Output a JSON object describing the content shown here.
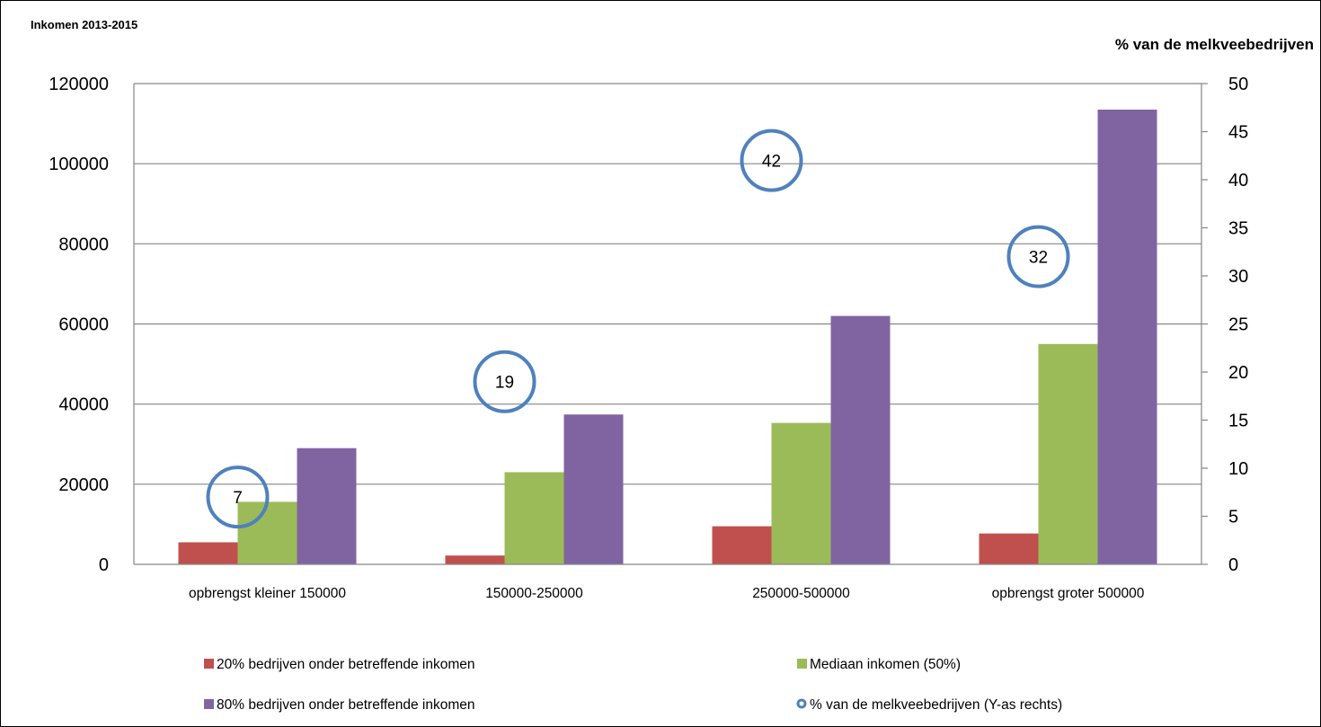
{
  "chart_data": {
    "type": "bar",
    "title": "Inkomen 2013-2015",
    "y2label": "% van de melkveebedrijven",
    "categories": [
      "opbrengst kleiner 150000",
      "150000-250000",
      "250000-500000",
      "opbrengst groter 500000"
    ],
    "ylim": [
      0,
      120000
    ],
    "yticks": [
      0,
      20000,
      40000,
      60000,
      80000,
      100000,
      120000
    ],
    "y2lim": [
      0,
      50
    ],
    "y2ticks": [
      0,
      5,
      10,
      15,
      20,
      25,
      30,
      35,
      40,
      45,
      50
    ],
    "grid": true,
    "legend_position": "bottom",
    "series": [
      {
        "name": "20% bedrijven onder betreffende inkomen",
        "color": "#c0504d",
        "axis": "left",
        "values": [
          5500,
          2200,
          9500,
          7700
        ]
      },
      {
        "name": "Mediaan inkomen (50%)",
        "color": "#9bbb59",
        "axis": "left",
        "values": [
          15600,
          23000,
          35300,
          55000
        ]
      },
      {
        "name": "80% bedrijven onder betreffende inkomen",
        "color": "#8064a2",
        "axis": "left",
        "values": [
          29000,
          37400,
          62000,
          113500
        ]
      }
    ],
    "markers": {
      "name": "% van de melkveebedrijven (Y-as rechts)",
      "color": "#4f81bd",
      "axis": "right",
      "values": [
        7,
        19,
        42,
        32
      ],
      "labels": [
        "7",
        "19",
        "42",
        "32"
      ]
    }
  }
}
